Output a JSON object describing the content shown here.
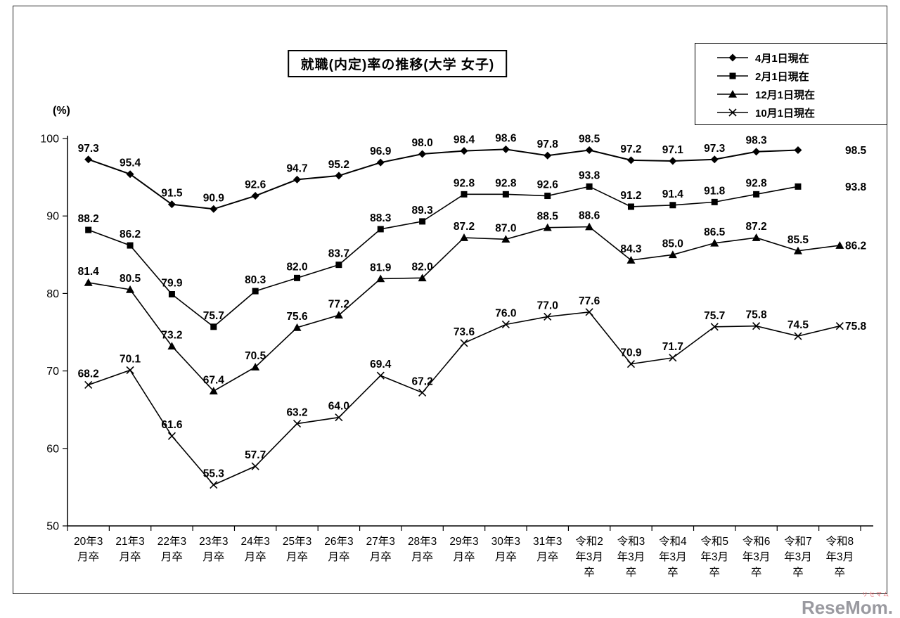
{
  "chart_data": {
    "type": "line",
    "title": "就職(内定)率の推移(大学 女子)",
    "y_unit": "(%)",
    "ylim": [
      50,
      100
    ],
    "y_ticks": [
      50,
      60,
      70,
      80,
      90,
      100
    ],
    "grid": false,
    "legend_position": "top-right",
    "line_color": "#000000",
    "categories": [
      "20年3月卒",
      "21年3月卒",
      "22年3月卒",
      "23年3月卒",
      "24年3月卒",
      "25年3月卒",
      "26年3月卒",
      "27年3月卒",
      "28年3月卒",
      "29年3月卒",
      "30年3月卒",
      "31年3月卒",
      "令和2年3月卒",
      "令和3年3月卒",
      "令和4年3月卒",
      "令和5年3月卒",
      "令和6年3月卒",
      "令和7年3月卒",
      "令和8年3月卒"
    ],
    "category_lines": [
      [
        "20年3",
        "月卒"
      ],
      [
        "21年3",
        "月卒"
      ],
      [
        "22年3",
        "月卒"
      ],
      [
        "23年3",
        "月卒"
      ],
      [
        "24年3",
        "月卒"
      ],
      [
        "25年3",
        "月卒"
      ],
      [
        "26年3",
        "月卒"
      ],
      [
        "27年3",
        "月卒"
      ],
      [
        "28年3",
        "月卒"
      ],
      [
        "29年3",
        "月卒"
      ],
      [
        "30年3",
        "月卒"
      ],
      [
        "31年3",
        "月卒"
      ],
      [
        "令和2",
        "年3月",
        "卒"
      ],
      [
        "令和3",
        "年3月",
        "卒"
      ],
      [
        "令和4",
        "年3月",
        "卒"
      ],
      [
        "令和5",
        "年3月",
        "卒"
      ],
      [
        "令和6",
        "年3月",
        "卒"
      ],
      [
        "令和7",
        "年3月",
        "卒"
      ],
      [
        "令和8",
        "年3月",
        "卒"
      ]
    ],
    "series": [
      {
        "id": "apr1",
        "name": "4月1日現在",
        "marker": "diamond",
        "values": [
          97.3,
          95.4,
          91.5,
          90.9,
          92.6,
          94.7,
          95.2,
          96.9,
          98.0,
          98.4,
          98.6,
          97.8,
          98.5,
          97.2,
          97.1,
          97.3,
          98.3,
          98.5
        ]
      },
      {
        "id": "feb1",
        "name": "2月1日現在",
        "marker": "square",
        "values": [
          88.2,
          86.2,
          79.9,
          75.7,
          80.3,
          82.0,
          83.7,
          88.3,
          89.3,
          92.8,
          92.8,
          92.6,
          93.8,
          91.2,
          91.4,
          91.8,
          92.8,
          93.8
        ]
      },
      {
        "id": "dec1",
        "name": "12月1日現在",
        "marker": "triangle",
        "values": [
          81.4,
          80.5,
          73.2,
          67.4,
          70.5,
          75.6,
          77.2,
          81.9,
          82.0,
          87.2,
          87.0,
          88.5,
          88.6,
          84.3,
          85.0,
          86.5,
          87.2,
          85.5,
          86.2
        ]
      },
      {
        "id": "oct1",
        "name": "10月1日現在",
        "marker": "x",
        "values": [
          68.2,
          70.1,
          61.6,
          55.3,
          57.7,
          63.2,
          64.0,
          69.4,
          67.2,
          73.6,
          76.0,
          77.0,
          77.6,
          70.9,
          71.7,
          75.7,
          75.8,
          74.5,
          75.8
        ]
      }
    ]
  },
  "branding": {
    "logo_text": "ReseMom",
    "logo_period": ".",
    "logo_reading": "リセマム"
  }
}
